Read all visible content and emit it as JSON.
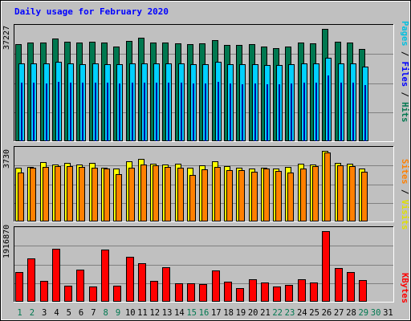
{
  "title": "Daily usage for February 2020",
  "colors": {
    "hits": "#007850",
    "files": "#00d0ff",
    "pages": "#00e0ff",
    "pages_inner": "#0000a0",
    "visits": "#ffff00",
    "sites": "#ff8000",
    "kbytes": "#ff0000",
    "panel": "#c0c0c0",
    "weekend_label": "#007850",
    "weekday_label": "#000000"
  },
  "panels": {
    "top": {
      "max_label": "37227",
      "labels": [
        "Pages",
        " / ",
        "Files",
        " / ",
        "Hits"
      ]
    },
    "middle": {
      "max_label": "3730",
      "labels": [
        "Sites",
        " / ",
        "Visits"
      ]
    },
    "bottom": {
      "max_label": "1916870",
      "labels": [
        "KBytes"
      ]
    }
  },
  "days": [
    "1",
    "2",
    "3",
    "4",
    "5",
    "6",
    "7",
    "8",
    "9",
    "10",
    "11",
    "12",
    "13",
    "14",
    "15",
    "16",
    "17",
    "18",
    "19",
    "20",
    "21",
    "22",
    "23",
    "24",
    "25",
    "26",
    "27",
    "28",
    "29",
    "30",
    "31"
  ],
  "weekend_days": [
    "1",
    "2",
    "8",
    "9",
    "15",
    "16",
    "22",
    "23",
    "29",
    "30"
  ],
  "chart_data": [
    {
      "type": "bar",
      "title": "Daily usage for February 2020",
      "ylabel": "Pages / Files / Hits",
      "ylim": [
        0,
        37227
      ],
      "categories": [
        "1",
        "2",
        "3",
        "4",
        "5",
        "6",
        "7",
        "8",
        "9",
        "10",
        "11",
        "12",
        "13",
        "14",
        "15",
        "16",
        "17",
        "18",
        "19",
        "20",
        "21",
        "22",
        "23",
        "24",
        "25",
        "26",
        "27",
        "28",
        "29"
      ],
      "series": [
        {
          "name": "Hits",
          "values": [
            32200,
            32800,
            32600,
            34000,
            32900,
            32700,
            33100,
            32600,
            31500,
            33200,
            34300,
            32800,
            32700,
            32500,
            32200,
            32500,
            33600,
            32000,
            32000,
            32300,
            31300,
            30800,
            31400,
            32800,
            32500,
            37200,
            33000,
            32800,
            30500
          ]
        },
        {
          "name": "Files",
          "values": [
            25700,
            25800,
            25700,
            26300,
            25700,
            25600,
            25700,
            25600,
            25400,
            25800,
            25900,
            25900,
            25900,
            25700,
            25600,
            25500,
            26400,
            25400,
            25400,
            25400,
            25300,
            25300,
            25400,
            25700,
            25800,
            27700,
            25800,
            25800,
            24700
          ]
        },
        {
          "name": "Pages",
          "values": [
            19300,
            19400,
            19200,
            19600,
            19300,
            19300,
            19400,
            19300,
            19100,
            19400,
            19500,
            19500,
            19500,
            19300,
            19200,
            19200,
            19600,
            19100,
            19000,
            19100,
            19000,
            18900,
            19100,
            19300,
            19300,
            21700,
            19300,
            19300,
            18500
          ]
        }
      ]
    },
    {
      "type": "bar",
      "ylabel": "Sites / Visits",
      "ylim": [
        0,
        3730
      ],
      "categories": [
        "1",
        "2",
        "3",
        "4",
        "5",
        "6",
        "7",
        "8",
        "9",
        "10",
        "11",
        "12",
        "13",
        "14",
        "15",
        "16",
        "17",
        "18",
        "19",
        "20",
        "21",
        "22",
        "23",
        "24",
        "25",
        "26",
        "27",
        "28",
        "29"
      ],
      "series": [
        {
          "name": "Visits",
          "values": [
            2850,
            2870,
            3150,
            2990,
            3080,
            3010,
            3110,
            2830,
            2800,
            3160,
            3290,
            3070,
            2990,
            3060,
            2860,
            2970,
            3170,
            2910,
            2840,
            2780,
            2850,
            2790,
            2870,
            3050,
            3030,
            3730,
            3080,
            3060,
            2800
          ]
        },
        {
          "name": "Sites",
          "values": [
            2590,
            2820,
            2890,
            2910,
            2910,
            2900,
            2860,
            2790,
            2500,
            2850,
            3020,
            2970,
            2880,
            2850,
            2470,
            2740,
            2900,
            2710,
            2730,
            2640,
            2810,
            2670,
            2590,
            2780,
            2930,
            3640,
            2970,
            2930,
            2620
          ]
        }
      ]
    },
    {
      "type": "bar",
      "ylabel": "KBytes",
      "ylim": [
        0,
        1916870
      ],
      "categories": [
        "1",
        "2",
        "3",
        "4",
        "5",
        "6",
        "7",
        "8",
        "9",
        "10",
        "11",
        "12",
        "13",
        "14",
        "15",
        "16",
        "17",
        "18",
        "19",
        "20",
        "21",
        "22",
        "23",
        "24",
        "25",
        "26",
        "27",
        "28",
        "29"
      ],
      "series": [
        {
          "name": "KBytes",
          "values": [
            816000,
            1173000,
            560000,
            1434000,
            429000,
            861000,
            424000,
            1408000,
            429000,
            1210000,
            1046000,
            566000,
            938000,
            500000,
            500000,
            469000,
            847000,
            546000,
            378000,
            612000,
            515000,
            408000,
            449000,
            617000,
            515000,
            1917000,
            918000,
            816000,
            597000
          ]
        }
      ]
    }
  ]
}
